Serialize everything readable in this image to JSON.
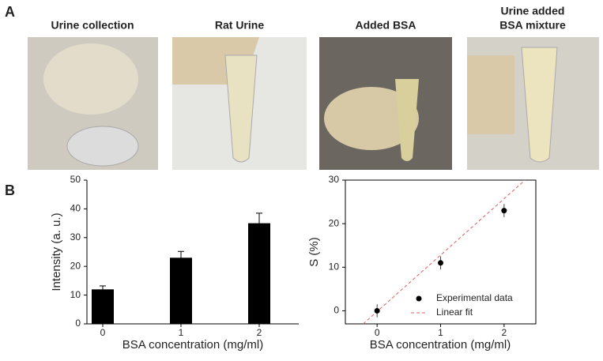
{
  "panel_labels": [
    "A",
    "B"
  ],
  "photos": [
    {
      "caption": [
        "Urine collection"
      ]
    },
    {
      "caption": [
        "Rat Urine"
      ]
    },
    {
      "caption": [
        "Added BSA"
      ]
    },
    {
      "caption": [
        "Urine added",
        "BSA mixture"
      ]
    }
  ],
  "chart_data": [
    {
      "type": "bar",
      "categories": [
        "0",
        "1",
        "2"
      ],
      "values": [
        12,
        23,
        35
      ],
      "errors": [
        1.2,
        2.2,
        3.5
      ],
      "color": "#000000",
      "ylim": [
        0,
        50
      ],
      "yticks": [
        0,
        10,
        20,
        30,
        40,
        50
      ],
      "xlabel": "BSA concentration (mg/ml)",
      "ylabel": "Intensity (a. u.)"
    },
    {
      "type": "scatter",
      "xlim": [
        -0.5,
        2.5
      ],
      "xticks": [
        0,
        1,
        2
      ],
      "ylim": [
        -3,
        30
      ],
      "yticks": [
        0,
        10,
        20,
        30
      ],
      "xlabel": "BSA concentration (mg/ml)",
      "ylabel": "S (%)",
      "legend": "lower-right",
      "series": [
        {
          "name": "Experimental data",
          "color": "#000000",
          "x": [
            0,
            1,
            2
          ],
          "values": [
            0,
            11,
            23
          ],
          "errors": [
            1.5,
            1.5,
            1.5
          ]
        },
        {
          "name": "Linear fit",
          "color": "#e06060",
          "x": [
            -0.22,
            2.33
          ],
          "values": [
            -3,
            30
          ]
        }
      ]
    }
  ]
}
